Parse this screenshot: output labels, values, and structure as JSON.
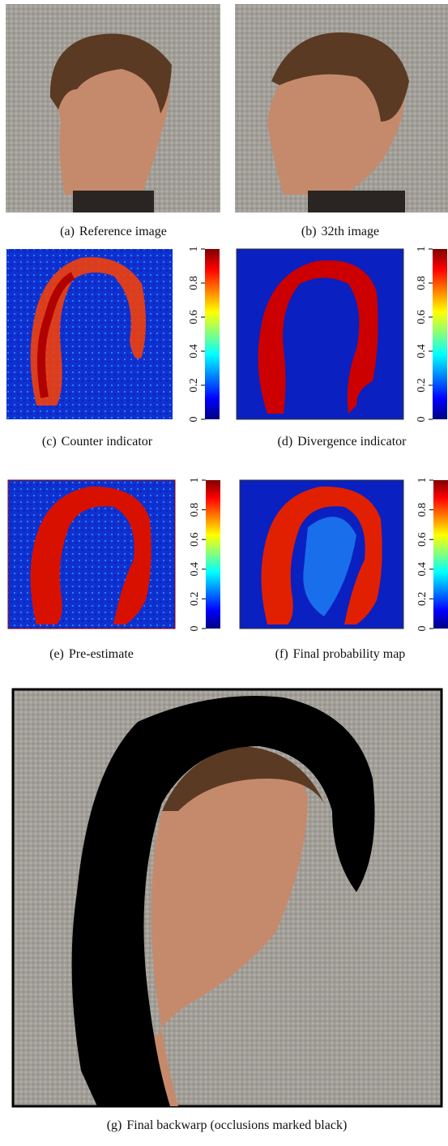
{
  "panels": [
    {
      "label": "(a)",
      "caption": "Reference image"
    },
    {
      "label": "(b)",
      "caption": "32th image"
    },
    {
      "label": "(c)",
      "caption": "Counter indicator",
      "colorbar_ticks": [
        0,
        0.2,
        0.4,
        0.6,
        0.8,
        1
      ]
    },
    {
      "label": "(d)",
      "caption": "Divergence indicator",
      "colorbar_ticks": [
        0,
        0.2,
        0.4,
        0.6,
        0.8,
        1
      ]
    },
    {
      "label": "(e)",
      "caption": "Pre-estimate",
      "colorbar_ticks": [
        0,
        0.2,
        0.4,
        0.6,
        0.8,
        1
      ]
    },
    {
      "label": "(f)",
      "caption": "Final probability map",
      "colorbar_ticks": [
        0,
        0.2,
        0.4,
        0.6,
        0.8,
        1
      ]
    },
    {
      "label": "(g)",
      "caption": "Final backwarp (occlusions marked black)"
    }
  ]
}
